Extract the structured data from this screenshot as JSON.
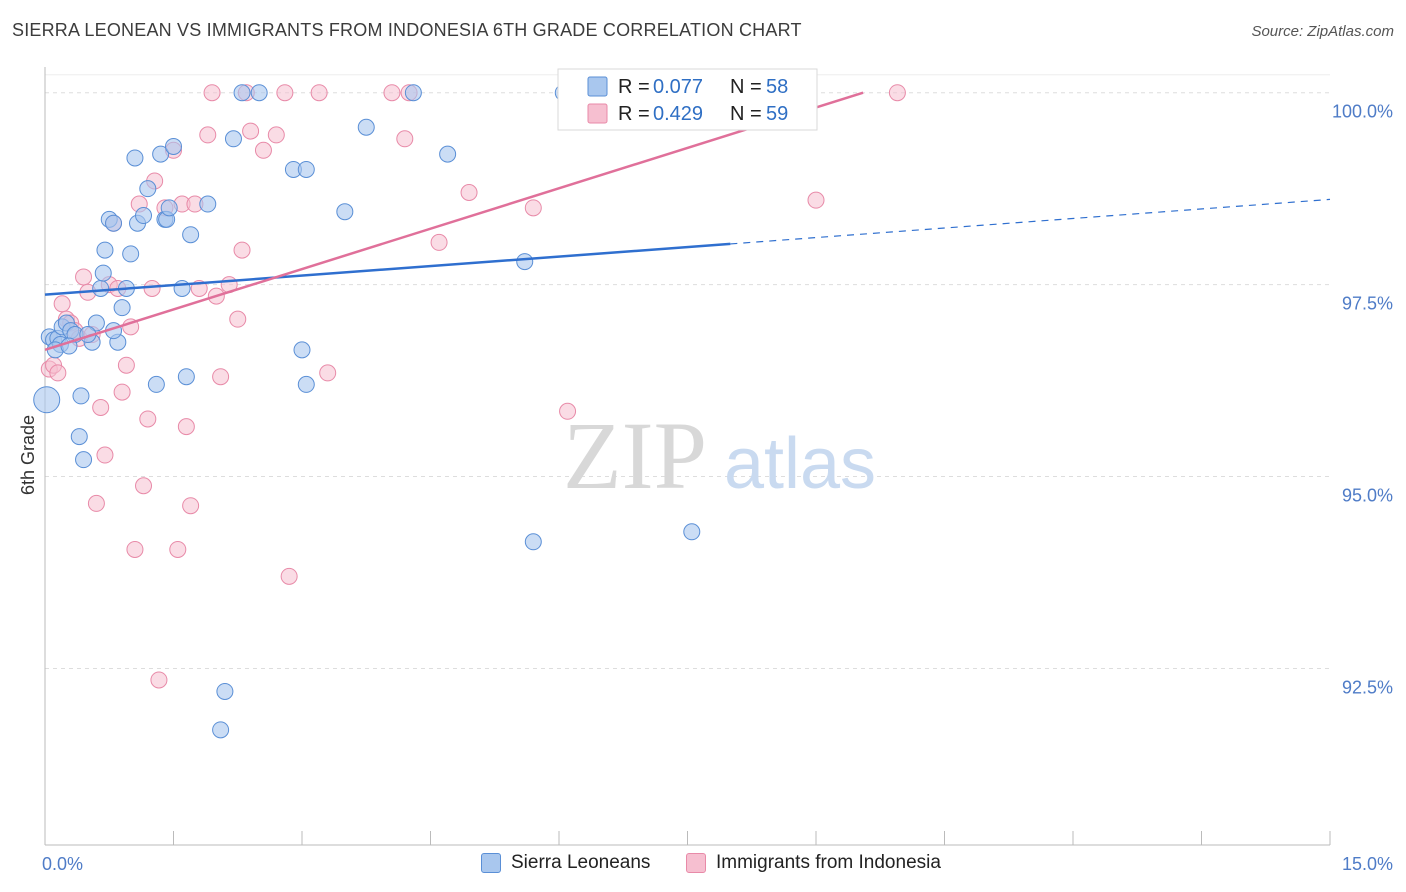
{
  "title": "SIERRA LEONEAN VS IMMIGRANTS FROM INDONESIA 6TH GRADE CORRELATION CHART",
  "source": "Source: ZipAtlas.com",
  "watermark": {
    "zip": "ZIP",
    "atlas": "atlas"
  },
  "colors": {
    "blue_fill": "#a9c7ee",
    "blue_stroke": "#5a8fd6",
    "blue_line": "#2f6fcf",
    "pink_fill": "#f6bfd0",
    "pink_stroke": "#e88aa8",
    "pink_line": "#e0709a",
    "grid": "#dddddd",
    "axis_text": "#4f7cc7"
  },
  "legend": {
    "rows": [
      {
        "r_label": "R = ",
        "r_value": "0.077",
        "n_label": "N = ",
        "n_value": "58"
      },
      {
        "r_label": "R = ",
        "r_value": "0.429",
        "n_label": "N = ",
        "n_value": "59"
      }
    ]
  },
  "bottom_legend": {
    "items": [
      {
        "label": "Sierra Leoneans"
      },
      {
        "label": "Immigrants from Indonesia"
      }
    ]
  },
  "chart_data": {
    "type": "scatter",
    "title": "SIERRA LEONEAN VS IMMIGRANTS FROM INDONESIA 6TH GRADE CORRELATION CHART",
    "xlabel": "",
    "ylabel": "6th Grade",
    "xlim": [
      0,
      15
    ],
    "ylim": [
      90.2,
      100.4
    ],
    "x_tick_labels": [
      {
        "value": 0,
        "label": "0.0%"
      },
      {
        "value": 15,
        "label": "15.0%"
      }
    ],
    "y_tick_labels": [
      {
        "value": 100,
        "label": "100.0%"
      },
      {
        "value": 97.5,
        "label": "97.5%"
      },
      {
        "value": 95,
        "label": "95.0%"
      },
      {
        "value": 92.5,
        "label": "92.5%"
      }
    ],
    "series": [
      {
        "name": "Sierra Leoneans",
        "R": 0.077,
        "N": 58,
        "trend": {
          "x0": 0,
          "y0": 97.37,
          "x1": 8.0,
          "y1": 98.03,
          "x_dash_end": 15,
          "y_dash_end": 98.61
        },
        "points": [
          [
            0.02,
            96.0
          ],
          [
            0.05,
            96.82
          ],
          [
            0.1,
            96.78
          ],
          [
            0.15,
            96.8
          ],
          [
            0.18,
            96.72
          ],
          [
            0.2,
            96.95
          ],
          [
            0.25,
            97.0
          ],
          [
            0.3,
            96.9
          ],
          [
            0.35,
            96.85
          ],
          [
            0.4,
            95.52
          ],
          [
            0.45,
            95.22
          ],
          [
            0.42,
            96.05
          ],
          [
            0.55,
            96.75
          ],
          [
            0.6,
            97.0
          ],
          [
            0.65,
            97.45
          ],
          [
            0.68,
            97.65
          ],
          [
            0.7,
            97.95
          ],
          [
            0.75,
            98.35
          ],
          [
            0.8,
            98.3
          ],
          [
            0.85,
            96.75
          ],
          [
            0.9,
            97.2
          ],
          [
            0.95,
            97.45
          ],
          [
            1.0,
            97.9
          ],
          [
            1.05,
            99.15
          ],
          [
            1.08,
            98.3
          ],
          [
            1.15,
            98.4
          ],
          [
            1.2,
            98.75
          ],
          [
            1.3,
            96.2
          ],
          [
            1.35,
            99.2
          ],
          [
            1.4,
            98.35
          ],
          [
            1.42,
            98.35
          ],
          [
            1.45,
            98.5
          ],
          [
            1.5,
            99.3
          ],
          [
            1.6,
            97.45
          ],
          [
            1.65,
            96.3
          ],
          [
            1.7,
            98.15
          ],
          [
            1.9,
            98.55
          ],
          [
            2.05,
            91.7
          ],
          [
            2.1,
            92.2
          ],
          [
            2.2,
            99.4
          ],
          [
            2.3,
            100.0
          ],
          [
            2.5,
            100.0
          ],
          [
            2.9,
            99.0
          ],
          [
            3.05,
            99.0
          ],
          [
            3.0,
            96.65
          ],
          [
            3.05,
            96.2
          ],
          [
            3.5,
            98.45
          ],
          [
            3.75,
            99.55
          ],
          [
            4.3,
            100.0
          ],
          [
            4.7,
            99.2
          ],
          [
            5.6,
            97.8
          ],
          [
            5.7,
            94.15
          ],
          [
            6.05,
            100.0
          ],
          [
            7.55,
            94.28
          ],
          [
            0.12,
            96.65
          ],
          [
            0.5,
            96.85
          ],
          [
            0.8,
            96.9
          ],
          [
            0.28,
            96.7
          ]
        ]
      },
      {
        "name": "Immigrants from Indonesia",
        "R": 0.429,
        "N": 59,
        "trend": {
          "x0": 0,
          "y0": 96.65,
          "x1": 9.55,
          "y1": 100.0
        },
        "points": [
          [
            0.05,
            96.4
          ],
          [
            0.1,
            96.45
          ],
          [
            0.15,
            96.35
          ],
          [
            0.2,
            97.25
          ],
          [
            0.25,
            97.05
          ],
          [
            0.3,
            97.0
          ],
          [
            0.35,
            96.9
          ],
          [
            0.4,
            96.8
          ],
          [
            0.45,
            97.6
          ],
          [
            0.5,
            97.4
          ],
          [
            0.55,
            96.85
          ],
          [
            0.6,
            94.65
          ],
          [
            0.65,
            95.9
          ],
          [
            0.7,
            95.28
          ],
          [
            0.75,
            97.5
          ],
          [
            0.8,
            98.3
          ],
          [
            0.85,
            97.45
          ],
          [
            0.9,
            96.1
          ],
          [
            0.95,
            96.45
          ],
          [
            1.0,
            96.95
          ],
          [
            1.05,
            94.05
          ],
          [
            1.1,
            98.55
          ],
          [
            1.15,
            94.88
          ],
          [
            1.2,
            95.75
          ],
          [
            1.25,
            97.45
          ],
          [
            1.28,
            98.85
          ],
          [
            1.33,
            92.35
          ],
          [
            1.4,
            98.5
          ],
          [
            1.5,
            99.25
          ],
          [
            1.55,
            94.05
          ],
          [
            1.6,
            98.55
          ],
          [
            1.65,
            95.65
          ],
          [
            1.7,
            94.62
          ],
          [
            1.75,
            98.55
          ],
          [
            1.8,
            97.45
          ],
          [
            1.9,
            99.45
          ],
          [
            1.95,
            100.0
          ],
          [
            2.0,
            97.35
          ],
          [
            2.05,
            96.3
          ],
          [
            2.15,
            97.5
          ],
          [
            2.25,
            97.05
          ],
          [
            2.3,
            97.95
          ],
          [
            2.35,
            100.0
          ],
          [
            2.4,
            99.5
          ],
          [
            2.55,
            99.25
          ],
          [
            2.7,
            99.45
          ],
          [
            2.8,
            100.0
          ],
          [
            2.85,
            93.7
          ],
          [
            3.2,
            100.0
          ],
          [
            3.3,
            96.35
          ],
          [
            4.05,
            100.0
          ],
          [
            4.2,
            99.4
          ],
          [
            4.25,
            100.0
          ],
          [
            4.6,
            98.05
          ],
          [
            4.95,
            98.7
          ],
          [
            5.7,
            98.5
          ],
          [
            6.1,
            95.85
          ],
          [
            9.0,
            98.6
          ],
          [
            9.95,
            100.0
          ]
        ]
      }
    ]
  }
}
